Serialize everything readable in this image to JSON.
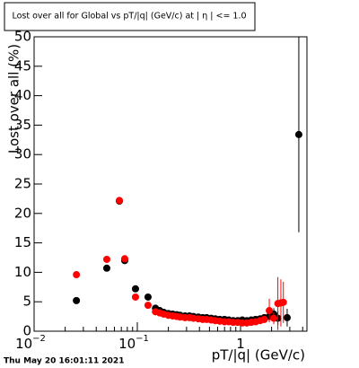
{
  "chart_data": {
    "type": "scatter",
    "title": "Lost over all for Global vs pT/|q| (GeV/c) at | η | <= 1.0",
    "x_label": "pT/|q| (GeV/c)",
    "y_label": "Lost over all (%)",
    "footer": "Thu May 20 16:01:11 2021",
    "log_x": true,
    "xlim": [
      0.01,
      4.4
    ],
    "ylim": [
      0,
      50
    ],
    "xticks": [
      {
        "value": 0.01,
        "label": "10",
        "exponent": "−2"
      },
      {
        "value": 0.1,
        "label": "10",
        "exponent": "−1"
      },
      1
    ],
    "xminorticks": [
      0.02,
      0.03,
      0.04,
      0.05,
      0.06,
      0.07,
      0.08,
      0.09,
      0.2,
      0.3,
      0.4,
      0.5,
      0.6,
      0.7,
      0.8,
      0.9,
      2,
      3,
      4
    ],
    "yticks": [
      0,
      5,
      10,
      15,
      20,
      25,
      30,
      35,
      40,
      45,
      50
    ],
    "series": [
      {
        "color": "#000000",
        "x": [
          0.0257,
          0.0506,
          0.067,
          0.0755,
          0.096,
          0.127,
          0.15,
          0.165,
          0.18,
          0.2,
          0.22,
          0.24,
          0.26,
          0.29,
          0.32,
          0.35,
          0.39,
          0.43,
          0.47,
          0.52,
          0.57,
          0.63,
          0.7,
          0.77,
          0.85,
          0.94,
          1.04,
          1.15,
          1.27,
          1.4,
          1.55,
          1.7,
          1.9,
          2.1,
          2.3,
          2.83,
          3.67
        ],
        "values": [
          5.2,
          10.7,
          22.1,
          12.0,
          7.2,
          5.8,
          3.9,
          3.5,
          3.2,
          3.0,
          2.9,
          2.8,
          2.7,
          2.6,
          2.6,
          2.5,
          2.4,
          2.3,
          2.3,
          2.2,
          2.1,
          2.0,
          2.0,
          1.9,
          1.8,
          1.8,
          1.9,
          1.8,
          1.9,
          2.0,
          2.1,
          2.3,
          2.5,
          2.9,
          2.2,
          2.3,
          33.4
        ],
        "yerr": [
          0.4,
          0.5,
          0.6,
          0.6,
          0.4,
          0.3,
          0.2,
          0.2,
          0.2,
          0.2,
          0.2,
          0.2,
          0.2,
          0.2,
          0.2,
          0.2,
          0.2,
          0.2,
          0.2,
          0.2,
          0.2,
          0.2,
          0.2,
          0.2,
          0.2,
          0.2,
          0.3,
          0.3,
          0.3,
          0.4,
          0.5,
          0.6,
          0.8,
          1.0,
          1.2,
          1.5,
          16.6
        ]
      },
      {
        "color": "#ff0000",
        "x": [
          0.0257,
          0.0506,
          0.067,
          0.0755,
          0.096,
          0.127,
          0.15,
          0.165,
          0.18,
          0.2,
          0.22,
          0.24,
          0.26,
          0.29,
          0.32,
          0.35,
          0.39,
          0.43,
          0.47,
          0.52,
          0.57,
          0.63,
          0.7,
          0.77,
          0.85,
          0.94,
          1.04,
          1.15,
          1.27,
          1.4,
          1.55,
          1.7,
          1.9,
          2.1,
          2.3,
          2.46,
          2.6
        ],
        "values": [
          9.6,
          12.2,
          22.2,
          12.3,
          5.8,
          4.4,
          3.3,
          3.1,
          2.9,
          2.7,
          2.6,
          2.5,
          2.4,
          2.3,
          2.3,
          2.2,
          2.1,
          2.0,
          2.0,
          1.9,
          1.8,
          1.7,
          1.6,
          1.6,
          1.5,
          1.5,
          1.4,
          1.4,
          1.5,
          1.6,
          1.8,
          2.0,
          3.5,
          2.2,
          4.7,
          4.8,
          4.9
        ],
        "yerr": [
          0.5,
          0.6,
          0.6,
          0.6,
          0.4,
          0.3,
          0.2,
          0.2,
          0.2,
          0.2,
          0.2,
          0.2,
          0.2,
          0.2,
          0.2,
          0.2,
          0.2,
          0.2,
          0.2,
          0.2,
          0.2,
          0.2,
          0.2,
          0.2,
          0.2,
          0.2,
          0.2,
          0.2,
          0.3,
          0.3,
          0.4,
          0.6,
          2.0,
          1.0,
          4.5,
          4.0,
          3.5
        ]
      }
    ]
  }
}
